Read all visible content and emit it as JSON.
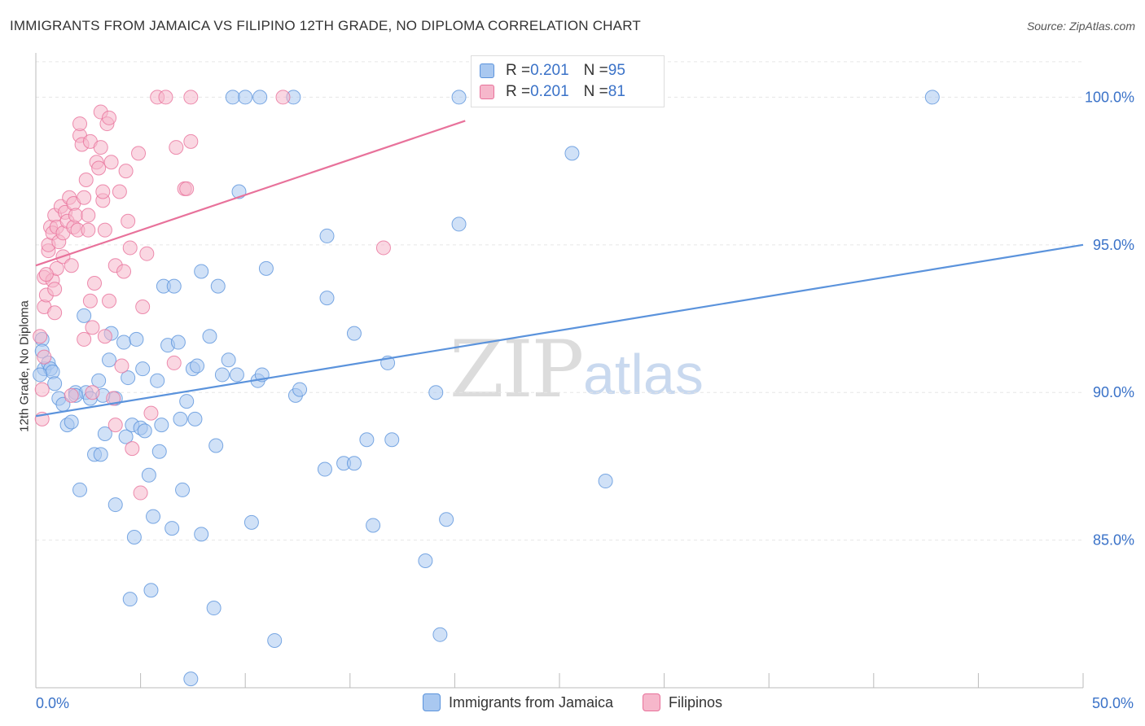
{
  "header": {
    "title": "IMMIGRANTS FROM JAMAICA VS FILIPINO 12TH GRADE, NO DIPLOMA CORRELATION CHART",
    "source": "Source: ZipAtlas.com"
  },
  "watermark": {
    "zip": "ZIP",
    "atlas": "atlas"
  },
  "stats": [
    {
      "r_label": "R = ",
      "r_value": "0.201",
      "n_label": "N = ",
      "n_value": "95",
      "color": "#a9c8f0"
    },
    {
      "r_label": "R = ",
      "r_value": "0.201",
      "n_label": "N = ",
      "n_value": "81",
      "color": "#f6b7cb"
    }
  ],
  "legend": [
    {
      "label": "Immigrants from Jamaica",
      "color": "#a9c8f0"
    },
    {
      "label": "Filipinos",
      "color": "#f6b7cb"
    }
  ],
  "chart_data": {
    "type": "scatter",
    "title": "IMMIGRANTS FROM JAMAICA VS FILIPINO 12TH GRADE, NO DIPLOMA CORRELATION CHART",
    "xlabel": "",
    "ylabel": "12th Grade, No Diploma",
    "x_tick_labels": [
      "0.0%",
      "50.0%"
    ],
    "y_tick_labels": [
      "100.0%",
      "95.0%",
      "90.0%",
      "85.0%"
    ],
    "y_tick_values": [
      100,
      95,
      90,
      85
    ],
    "xlim": [
      0,
      50
    ],
    "ylim": [
      80,
      101.5
    ],
    "grid": true,
    "series": [
      {
        "name": "Immigrants from Jamaica",
        "color": "#5b93dc",
        "fill": "#a9c8f0",
        "trend": {
          "x": [
            0,
            50
          ],
          "y": [
            89.2,
            95.0
          ]
        },
        "points": [
          [
            0.3,
            91.8
          ],
          [
            0.3,
            91.4
          ],
          [
            0.4,
            90.8
          ],
          [
            0.6,
            91.0
          ],
          [
            0.7,
            90.8
          ],
          [
            0.8,
            90.7
          ],
          [
            0.9,
            90.3
          ],
          [
            1.1,
            89.8
          ],
          [
            1.3,
            89.6
          ],
          [
            1.5,
            88.9
          ],
          [
            1.7,
            89.0
          ],
          [
            1.9,
            90.0
          ],
          [
            2.1,
            86.7
          ],
          [
            2.3,
            92.6
          ],
          [
            2.4,
            90.0
          ],
          [
            2.6,
            89.8
          ],
          [
            2.8,
            87.9
          ],
          [
            3.0,
            90.4
          ],
          [
            3.1,
            87.9
          ],
          [
            3.3,
            88.6
          ],
          [
            3.5,
            91.1
          ],
          [
            3.6,
            92.0
          ],
          [
            3.8,
            89.8
          ],
          [
            3.8,
            86.2
          ],
          [
            4.2,
            91.7
          ],
          [
            4.3,
            88.5
          ],
          [
            4.4,
            90.5
          ],
          [
            4.5,
            83.0
          ],
          [
            4.6,
            88.9
          ],
          [
            4.7,
            85.1
          ],
          [
            4.8,
            91.8
          ],
          [
            5.0,
            88.8
          ],
          [
            5.1,
            90.8
          ],
          [
            5.2,
            88.7
          ],
          [
            5.4,
            87.2
          ],
          [
            5.5,
            83.3
          ],
          [
            5.6,
            85.8
          ],
          [
            5.8,
            90.4
          ],
          [
            5.9,
            88.0
          ],
          [
            6.0,
            88.9
          ],
          [
            6.1,
            93.6
          ],
          [
            6.3,
            91.6
          ],
          [
            6.5,
            85.4
          ],
          [
            6.6,
            93.6
          ],
          [
            6.8,
            91.7
          ],
          [
            6.9,
            89.1
          ],
          [
            7.0,
            86.7
          ],
          [
            7.2,
            89.7
          ],
          [
            7.4,
            80.3
          ],
          [
            7.5,
            90.8
          ],
          [
            7.6,
            89.1
          ],
          [
            7.7,
            90.9
          ],
          [
            7.9,
            85.2
          ],
          [
            7.9,
            94.1
          ],
          [
            8.3,
            91.9
          ],
          [
            8.5,
            82.7
          ],
          [
            8.6,
            88.2
          ],
          [
            8.7,
            93.6
          ],
          [
            9.2,
            91.1
          ],
          [
            9.4,
            100.0
          ],
          [
            9.6,
            90.6
          ],
          [
            9.7,
            96.8
          ],
          [
            10.0,
            100.0
          ],
          [
            10.3,
            85.6
          ],
          [
            10.6,
            90.4
          ],
          [
            10.7,
            100.0
          ],
          [
            10.8,
            90.6
          ],
          [
            11.0,
            94.2
          ],
          [
            11.4,
            81.6
          ],
          [
            12.3,
            100.0
          ],
          [
            12.4,
            89.9
          ],
          [
            12.6,
            90.1
          ],
          [
            13.9,
            95.3
          ],
          [
            13.9,
            93.2
          ],
          [
            13.8,
            87.4
          ],
          [
            14.7,
            87.6
          ],
          [
            15.2,
            87.6
          ],
          [
            15.2,
            92.0
          ],
          [
            15.8,
            88.4
          ],
          [
            16.1,
            85.5
          ],
          [
            16.8,
            91.0
          ],
          [
            17.0,
            88.4
          ],
          [
            18.6,
            84.3
          ],
          [
            19.1,
            90.0
          ],
          [
            19.3,
            81.8
          ],
          [
            19.6,
            85.7
          ],
          [
            20.2,
            95.7
          ],
          [
            20.2,
            100.0
          ],
          [
            25.6,
            98.1
          ],
          [
            27.2,
            87.0
          ],
          [
            42.8,
            100.0
          ],
          [
            0.2,
            90.6
          ],
          [
            1.9,
            89.9
          ],
          [
            3.2,
            89.9
          ],
          [
            8.9,
            90.6
          ]
        ]
      },
      {
        "name": "Filipinos",
        "color": "#e8729b",
        "fill": "#f6b7cb",
        "trend": {
          "x": [
            0,
            20.5
          ],
          "y": [
            94.3,
            99.2
          ]
        },
        "points": [
          [
            0.2,
            91.9
          ],
          [
            0.3,
            90.1
          ],
          [
            0.3,
            89.1
          ],
          [
            0.4,
            92.9
          ],
          [
            0.4,
            93.9
          ],
          [
            0.5,
            93.3
          ],
          [
            0.6,
            94.8
          ],
          [
            0.6,
            95.0
          ],
          [
            0.7,
            95.6
          ],
          [
            0.8,
            93.8
          ],
          [
            0.8,
            95.4
          ],
          [
            0.9,
            96.0
          ],
          [
            0.9,
            92.7
          ],
          [
            0.9,
            93.5
          ],
          [
            1.0,
            94.2
          ],
          [
            1.0,
            95.6
          ],
          [
            1.1,
            95.1
          ],
          [
            1.2,
            96.3
          ],
          [
            1.3,
            95.4
          ],
          [
            1.3,
            94.6
          ],
          [
            1.4,
            96.1
          ],
          [
            1.5,
            95.8
          ],
          [
            1.6,
            96.6
          ],
          [
            1.7,
            94.3
          ],
          [
            1.8,
            96.4
          ],
          [
            1.8,
            95.6
          ],
          [
            1.9,
            96.0
          ],
          [
            2.0,
            95.5
          ],
          [
            2.1,
            98.7
          ],
          [
            2.1,
            99.1
          ],
          [
            2.2,
            98.4
          ],
          [
            2.3,
            96.6
          ],
          [
            2.3,
            91.8
          ],
          [
            2.4,
            97.2
          ],
          [
            2.5,
            96.0
          ],
          [
            2.5,
            95.5
          ],
          [
            2.6,
            98.5
          ],
          [
            2.6,
            93.1
          ],
          [
            2.7,
            92.2
          ],
          [
            2.7,
            90.0
          ],
          [
            2.8,
            93.7
          ],
          [
            2.9,
            97.8
          ],
          [
            3.0,
            97.6
          ],
          [
            3.1,
            98.3
          ],
          [
            3.1,
            99.5
          ],
          [
            3.2,
            96.5
          ],
          [
            3.2,
            96.8
          ],
          [
            3.3,
            95.5
          ],
          [
            3.3,
            91.9
          ],
          [
            3.4,
            99.1
          ],
          [
            3.5,
            99.3
          ],
          [
            3.5,
            93.1
          ],
          [
            3.6,
            97.8
          ],
          [
            3.7,
            89.8
          ],
          [
            3.8,
            88.9
          ],
          [
            3.8,
            94.3
          ],
          [
            4.0,
            96.8
          ],
          [
            4.1,
            90.9
          ],
          [
            4.2,
            94.1
          ],
          [
            4.3,
            97.5
          ],
          [
            4.4,
            95.8
          ],
          [
            4.5,
            94.9
          ],
          [
            4.6,
            88.1
          ],
          [
            4.9,
            98.1
          ],
          [
            5.0,
            86.6
          ],
          [
            5.1,
            92.9
          ],
          [
            5.3,
            94.7
          ],
          [
            5.5,
            89.3
          ],
          [
            5.8,
            100.0
          ],
          [
            6.2,
            100.0
          ],
          [
            6.6,
            91.0
          ],
          [
            6.7,
            98.3
          ],
          [
            7.1,
            96.9
          ],
          [
            7.4,
            100.0
          ],
          [
            7.4,
            98.5
          ],
          [
            7.2,
            96.9
          ],
          [
            11.8,
            100.0
          ],
          [
            16.6,
            94.9
          ],
          [
            0.4,
            91.2
          ],
          [
            0.5,
            94.0
          ],
          [
            1.7,
            89.9
          ]
        ]
      }
    ]
  }
}
